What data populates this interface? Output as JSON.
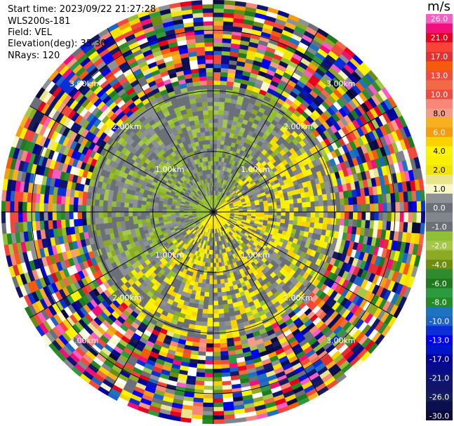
{
  "header": {
    "start_time": "Start time: 2023/09/22 21:27:28",
    "instrument": "WLS200s-181",
    "field": "Field: VEL",
    "elevation": "Elevation(deg): 35.30",
    "nrays": "NRays: 120"
  },
  "colorbar": {
    "title": "m/s",
    "bins": [
      {
        "color": "#f85cc6",
        "label": "26.0"
      },
      {
        "color": "#f30f7a",
        "label": ""
      },
      {
        "color": "#e8001e",
        "label": "21.0"
      },
      {
        "color": "#f8423a",
        "label": ""
      },
      {
        "color": "#e2312e",
        "label": "17.0"
      },
      {
        "color": "#f55a0d",
        "label": ""
      },
      {
        "color": "#f24a3c",
        "label": "13.0"
      },
      {
        "color": "#f06a48",
        "label": ""
      },
      {
        "color": "#ef4b3c",
        "label": "10.0"
      },
      {
        "color": "#f8877a",
        "label": ""
      },
      {
        "color": "#f39c87",
        "label": "8.0"
      },
      {
        "color": "#f7b01f",
        "label": ""
      },
      {
        "color": "#f79b10",
        "label": "6.0"
      },
      {
        "color": "#fbd200",
        "label": ""
      },
      {
        "color": "#fff400",
        "label": "4.0"
      },
      {
        "color": "#f7f000",
        "label": ""
      },
      {
        "color": "#f3e300",
        "label": "2.0"
      },
      {
        "color": "#e8e58c",
        "label": ""
      },
      {
        "color": "#faf7c8",
        "label": "1.0"
      },
      {
        "color": "#8e9297",
        "label": ""
      },
      {
        "color": "#6b6f78",
        "label": "0.0"
      },
      {
        "color": "#7f868c",
        "label": ""
      },
      {
        "color": "#697078",
        "label": "-1.0"
      },
      {
        "color": "#8fc032",
        "label": ""
      },
      {
        "color": "#a5c84a",
        "label": "-2.0"
      },
      {
        "color": "#8caa24",
        "label": ""
      },
      {
        "color": "#6c8d10",
        "label": "-4.0"
      },
      {
        "color": "#2e8b2e",
        "label": ""
      },
      {
        "color": "#1f7a1f",
        "label": "-6.0"
      },
      {
        "color": "#2c9a3e",
        "label": ""
      },
      {
        "color": "#228b22",
        "label": "-8.0"
      },
      {
        "color": "#1e73be",
        "label": ""
      },
      {
        "color": "#1c64c8",
        "label": "-10.0"
      },
      {
        "color": "#0a2fd8",
        "label": ""
      },
      {
        "color": "#0000f5",
        "label": "-13.0"
      },
      {
        "color": "#0014c8",
        "label": ""
      },
      {
        "color": "#00009e",
        "label": "-17.0"
      },
      {
        "color": "#080c8a",
        "label": ""
      },
      {
        "color": "#0c1478",
        "label": "-21.0"
      },
      {
        "color": "#11146a",
        "label": ""
      },
      {
        "color": "#141c5c",
        "label": "-26.0"
      },
      {
        "color": "#0a0f50",
        "label": ""
      },
      {
        "color": "#0b0a3c",
        "label": "-30.0"
      }
    ]
  },
  "chart_data": {
    "type": "heatmap",
    "projection": "PPI (polar plan position indicator)",
    "field": "VEL",
    "units": "m/s",
    "nrays": 120,
    "azimuth_step_deg": 3,
    "range_rings_km": [
      1.0,
      2.0,
      3.0
    ],
    "range_ring_labels": [
      "1.00km",
      "2.00km",
      "3.00km"
    ],
    "max_range_km": 3.5,
    "value_range": [
      -30.0,
      26.0
    ],
    "grid": true,
    "description_bands_km": {
      "coherent_region": [
        0.0,
        2.1
      ],
      "noise_region": [
        2.1,
        3.5
      ]
    }
  }
}
